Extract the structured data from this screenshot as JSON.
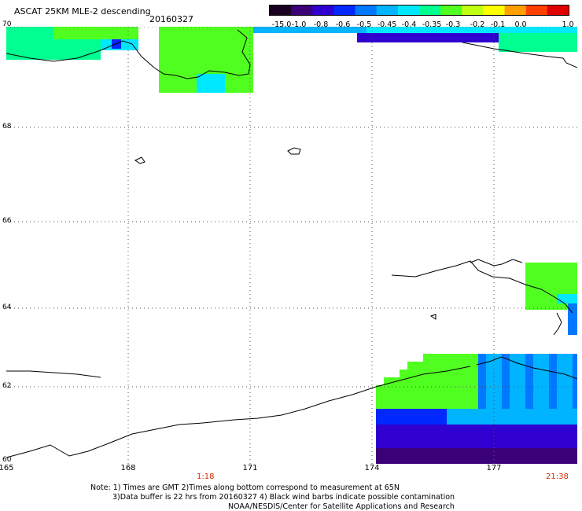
{
  "header": {
    "title": "ASCAT 25KM MLE-2 descending",
    "date": "20160327"
  },
  "colorbar": {
    "labels": [
      "-15.0",
      "-1.0",
      "-0.8",
      "-0.6",
      "-0.5",
      "-0.45",
      "-0.4",
      "-0.35",
      "-0.3",
      "-0.2",
      "-0.1",
      "0.0",
      "1.0"
    ],
    "colors": [
      "#1a0020",
      "#3a0078",
      "#3000d0",
      "#0028ff",
      "#0078ff",
      "#00b4ff",
      "#00e8ff",
      "#00ff90",
      "#50ff20",
      "#c0ff10",
      "#ffff00",
      "#ffa000",
      "#ff4000",
      "#e00000"
    ]
  },
  "axes": {
    "lat_labels": [
      "70",
      "68",
      "66",
      "64",
      "62",
      "60"
    ],
    "lon_labels": [
      "165",
      "168",
      "171",
      "174",
      "177"
    ]
  },
  "times": {
    "start": "1:18",
    "end": "21:38"
  },
  "notes": {
    "line1": "Note: 1) Times are GMT 2)Times along bottom correspond to measurement at 65N",
    "line2": "3)Data buffer is 22 hrs from 20160327 4) Black wind barbs indicate possible contamination",
    "line3": "NOAA/NESDIS/Center for Satellite Applications and Research"
  }
}
